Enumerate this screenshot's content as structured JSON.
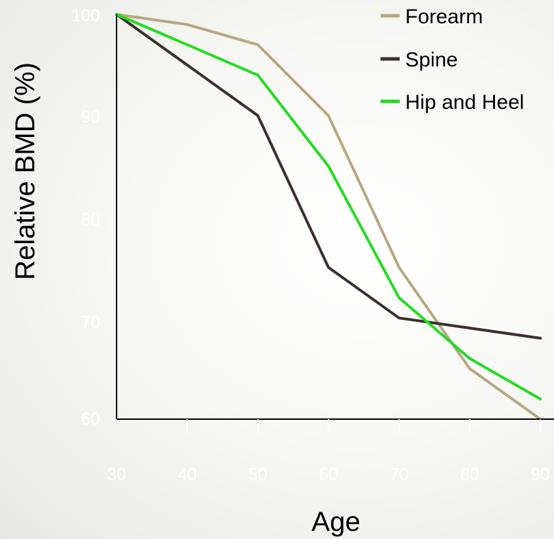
{
  "chart_data": {
    "type": "line",
    "title": "",
    "xlabel": "Age",
    "ylabel": "Relative BMD (%)",
    "x": [
      30,
      40,
      50,
      60,
      70,
      80,
      90
    ],
    "xlim": [
      30,
      90
    ],
    "ylim": [
      60,
      100
    ],
    "xticks": [
      "30",
      "40",
      "50",
      "60",
      "70",
      "80",
      "90"
    ],
    "yticks": [
      "60",
      "70",
      "80",
      "90",
      "100"
    ],
    "grid": false,
    "legend_position": "top-right",
    "series": [
      {
        "name": "Forearm",
        "color": "#b8a77f",
        "values": [
          100,
          99,
          97,
          90,
          75,
          65,
          60
        ]
      },
      {
        "name": "Spine",
        "color": "#3a302c",
        "values": [
          100,
          95,
          90,
          75,
          70,
          69,
          68
        ]
      },
      {
        "name": "Hip and Heel",
        "color": "#22dd22",
        "values": [
          100,
          97,
          94,
          85,
          72,
          66,
          62
        ]
      }
    ]
  }
}
